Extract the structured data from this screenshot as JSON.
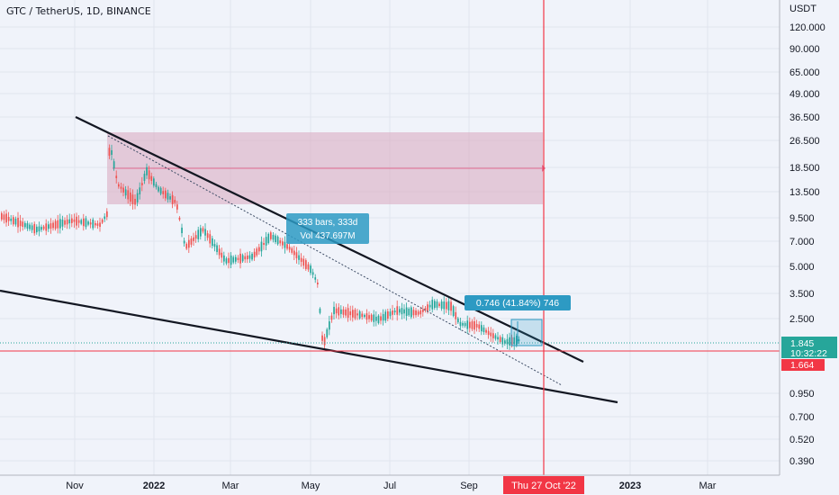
{
  "chart_data": {
    "type": "candlestick",
    "title": "GTC / TetherUS, 1D, BINANCE",
    "y_axis_unit": "USDT",
    "y_scale": "log",
    "y_ticks": [
      "120.000",
      "90.000",
      "65.000",
      "49.000",
      "36.500",
      "26.500",
      "18.500",
      "13.500",
      "9.500",
      "7.000",
      "5.000",
      "3.500",
      "2.500",
      "1.845",
      "1.664",
      "0.950",
      "0.700",
      "0.520",
      "0.390"
    ],
    "x_ticks": [
      "Nov",
      "2022",
      "Mar",
      "May",
      "Jul",
      "Sep",
      "2023",
      "Mar"
    ],
    "x_axis_crosshair_label": "Thu 27 Oct '22",
    "last_price": "1.845",
    "countdown": "10:32:22",
    "crosshair_price": "1.664",
    "annotations": {
      "bars_range": "333 bars, 333d",
      "volume": "Vol 437.697M",
      "price_range": "0.746 (41.84%) 746"
    }
  },
  "colors": {
    "up": "#26a69a",
    "down": "#ef5350",
    "crosshair": "#f23645",
    "label_blue": "#2d9ac3",
    "zone_fill": "#d8a6be"
  }
}
